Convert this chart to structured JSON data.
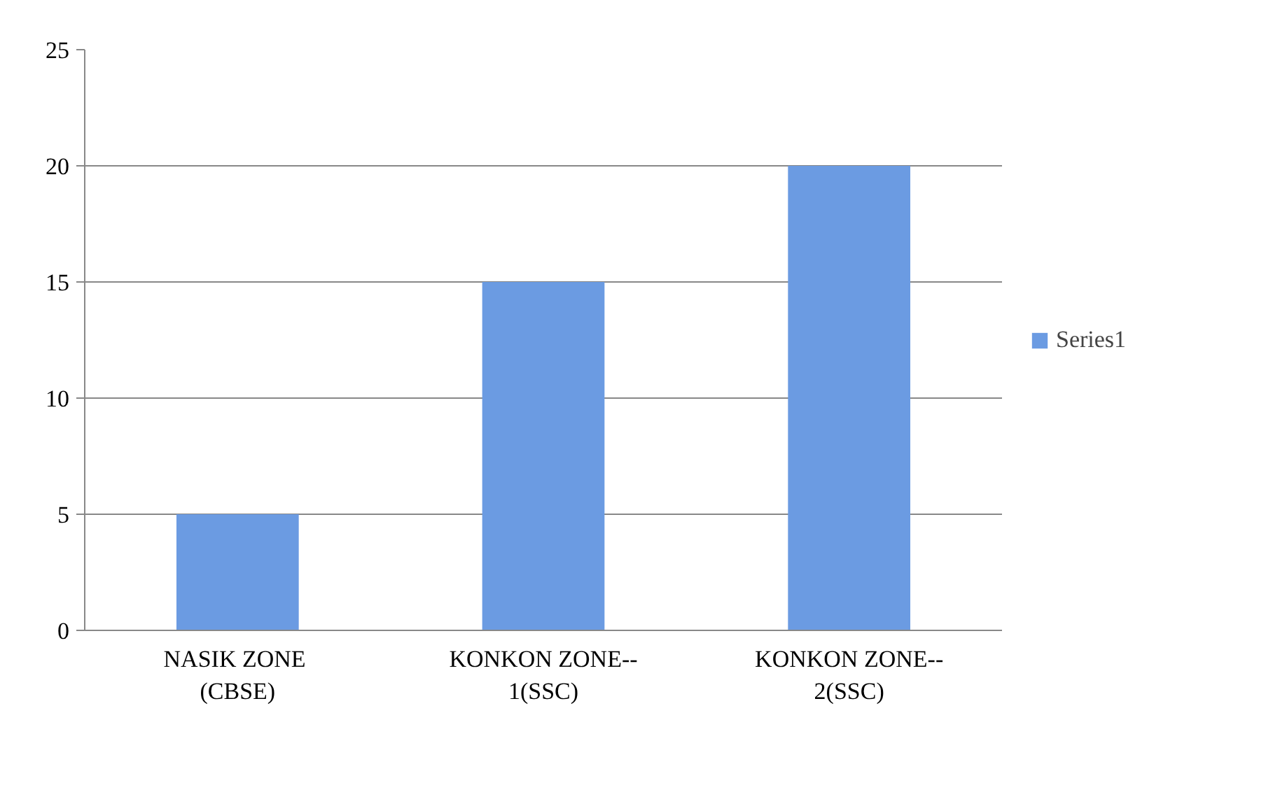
{
  "chart_data": {
    "type": "bar",
    "categories": [
      "NASIK  ZONE\n(CBSE)",
      "KONKON ZONE--\n1(SSC)",
      "KONKON ZONE--\n2(SSC)"
    ],
    "series": [
      {
        "name": "Series1",
        "color": "#6b9be2",
        "values": [
          5,
          15,
          20
        ]
      }
    ],
    "ylim": [
      0,
      25
    ],
    "yticks": [
      0,
      5,
      10,
      15,
      20,
      25
    ],
    "grid": "y",
    "legend": "right"
  }
}
